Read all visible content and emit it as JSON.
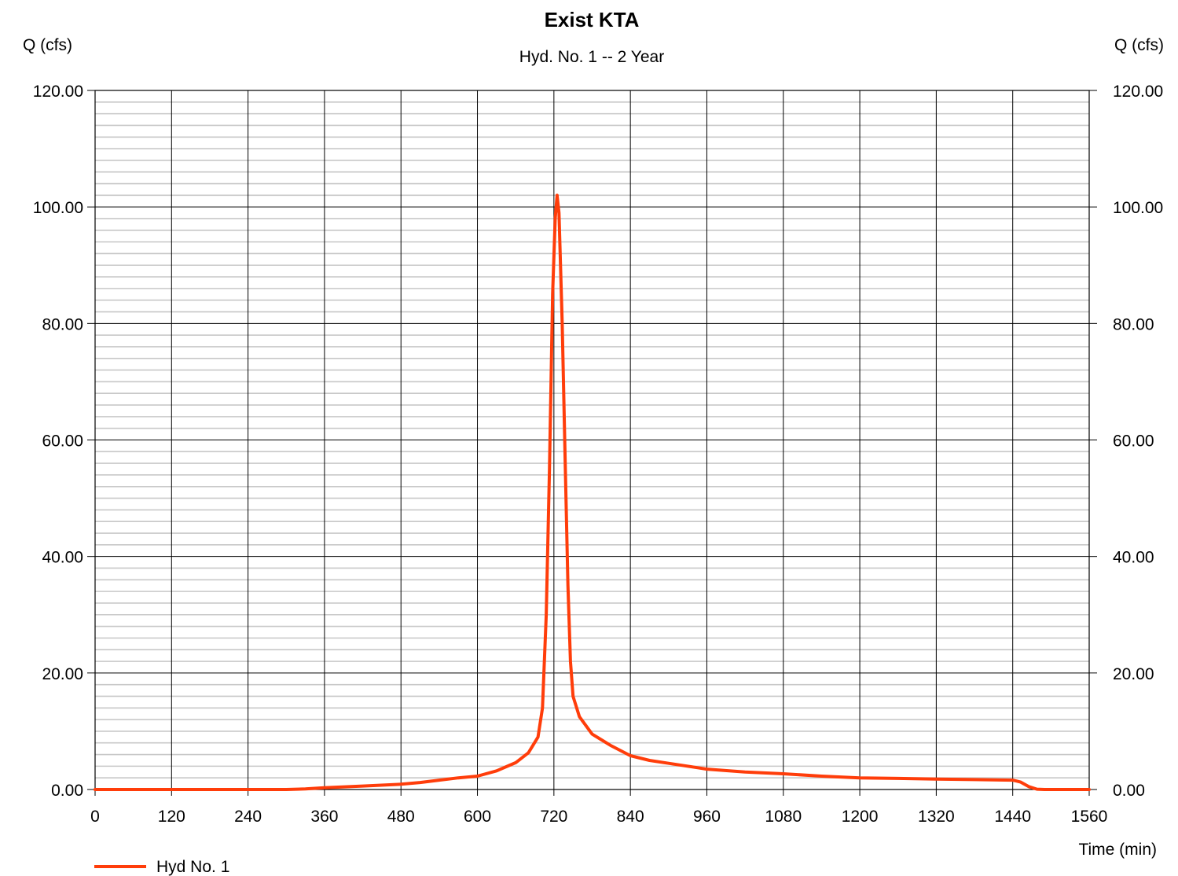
{
  "chart_data": {
    "type": "line",
    "title": "Exist KTA",
    "subtitle": "Hyd. No. 1 -- 2 Year",
    "ylabel_left": "Q (cfs)",
    "ylabel_right": "Q (cfs)",
    "xlabel": "Time (min)",
    "xlim": [
      0,
      1560
    ],
    "ylim": [
      0,
      120
    ],
    "x_ticks": [
      "0",
      "120",
      "240",
      "360",
      "480",
      "600",
      "720",
      "840",
      "960",
      "1080",
      "1200",
      "1320",
      "1440",
      "1560"
    ],
    "y_ticks": [
      "0.00",
      "20.00",
      "40.00",
      "60.00",
      "80.00",
      "100.00",
      "120.00"
    ],
    "x_major_step": 120,
    "y_major_step": 20,
    "y_minor_step": 2,
    "grid": true,
    "legend_position": "bottom-left",
    "series": [
      {
        "name": "Hyd No. 1",
        "color": "#ff3d0a",
        "points": [
          [
            0,
            0
          ],
          [
            120,
            0
          ],
          [
            240,
            0
          ],
          [
            300,
            0
          ],
          [
            330,
            0.1
          ],
          [
            360,
            0.3
          ],
          [
            420,
            0.6
          ],
          [
            480,
            0.9
          ],
          [
            510,
            1.2
          ],
          [
            540,
            1.6
          ],
          [
            570,
            2.0
          ],
          [
            600,
            2.3
          ],
          [
            630,
            3.2
          ],
          [
            660,
            4.6
          ],
          [
            680,
            6.3
          ],
          [
            695,
            9.0
          ],
          [
            702,
            14
          ],
          [
            708,
            30
          ],
          [
            713,
            55
          ],
          [
            718,
            85
          ],
          [
            722,
            98
          ],
          [
            725,
            102
          ],
          [
            728,
            99
          ],
          [
            733,
            80
          ],
          [
            738,
            55
          ],
          [
            742,
            35
          ],
          [
            746,
            22
          ],
          [
            750,
            16
          ],
          [
            760,
            12.5
          ],
          [
            780,
            9.5
          ],
          [
            810,
            7.5
          ],
          [
            840,
            5.8
          ],
          [
            870,
            5.0
          ],
          [
            900,
            4.5
          ],
          [
            960,
            3.5
          ],
          [
            1020,
            3.0
          ],
          [
            1080,
            2.7
          ],
          [
            1140,
            2.3
          ],
          [
            1200,
            2.0
          ],
          [
            1260,
            1.9
          ],
          [
            1320,
            1.8
          ],
          [
            1380,
            1.7
          ],
          [
            1440,
            1.6
          ],
          [
            1452,
            1.3
          ],
          [
            1465,
            0.5
          ],
          [
            1478,
            0.05
          ],
          [
            1490,
            0
          ],
          [
            1560,
            0
          ]
        ]
      }
    ]
  }
}
